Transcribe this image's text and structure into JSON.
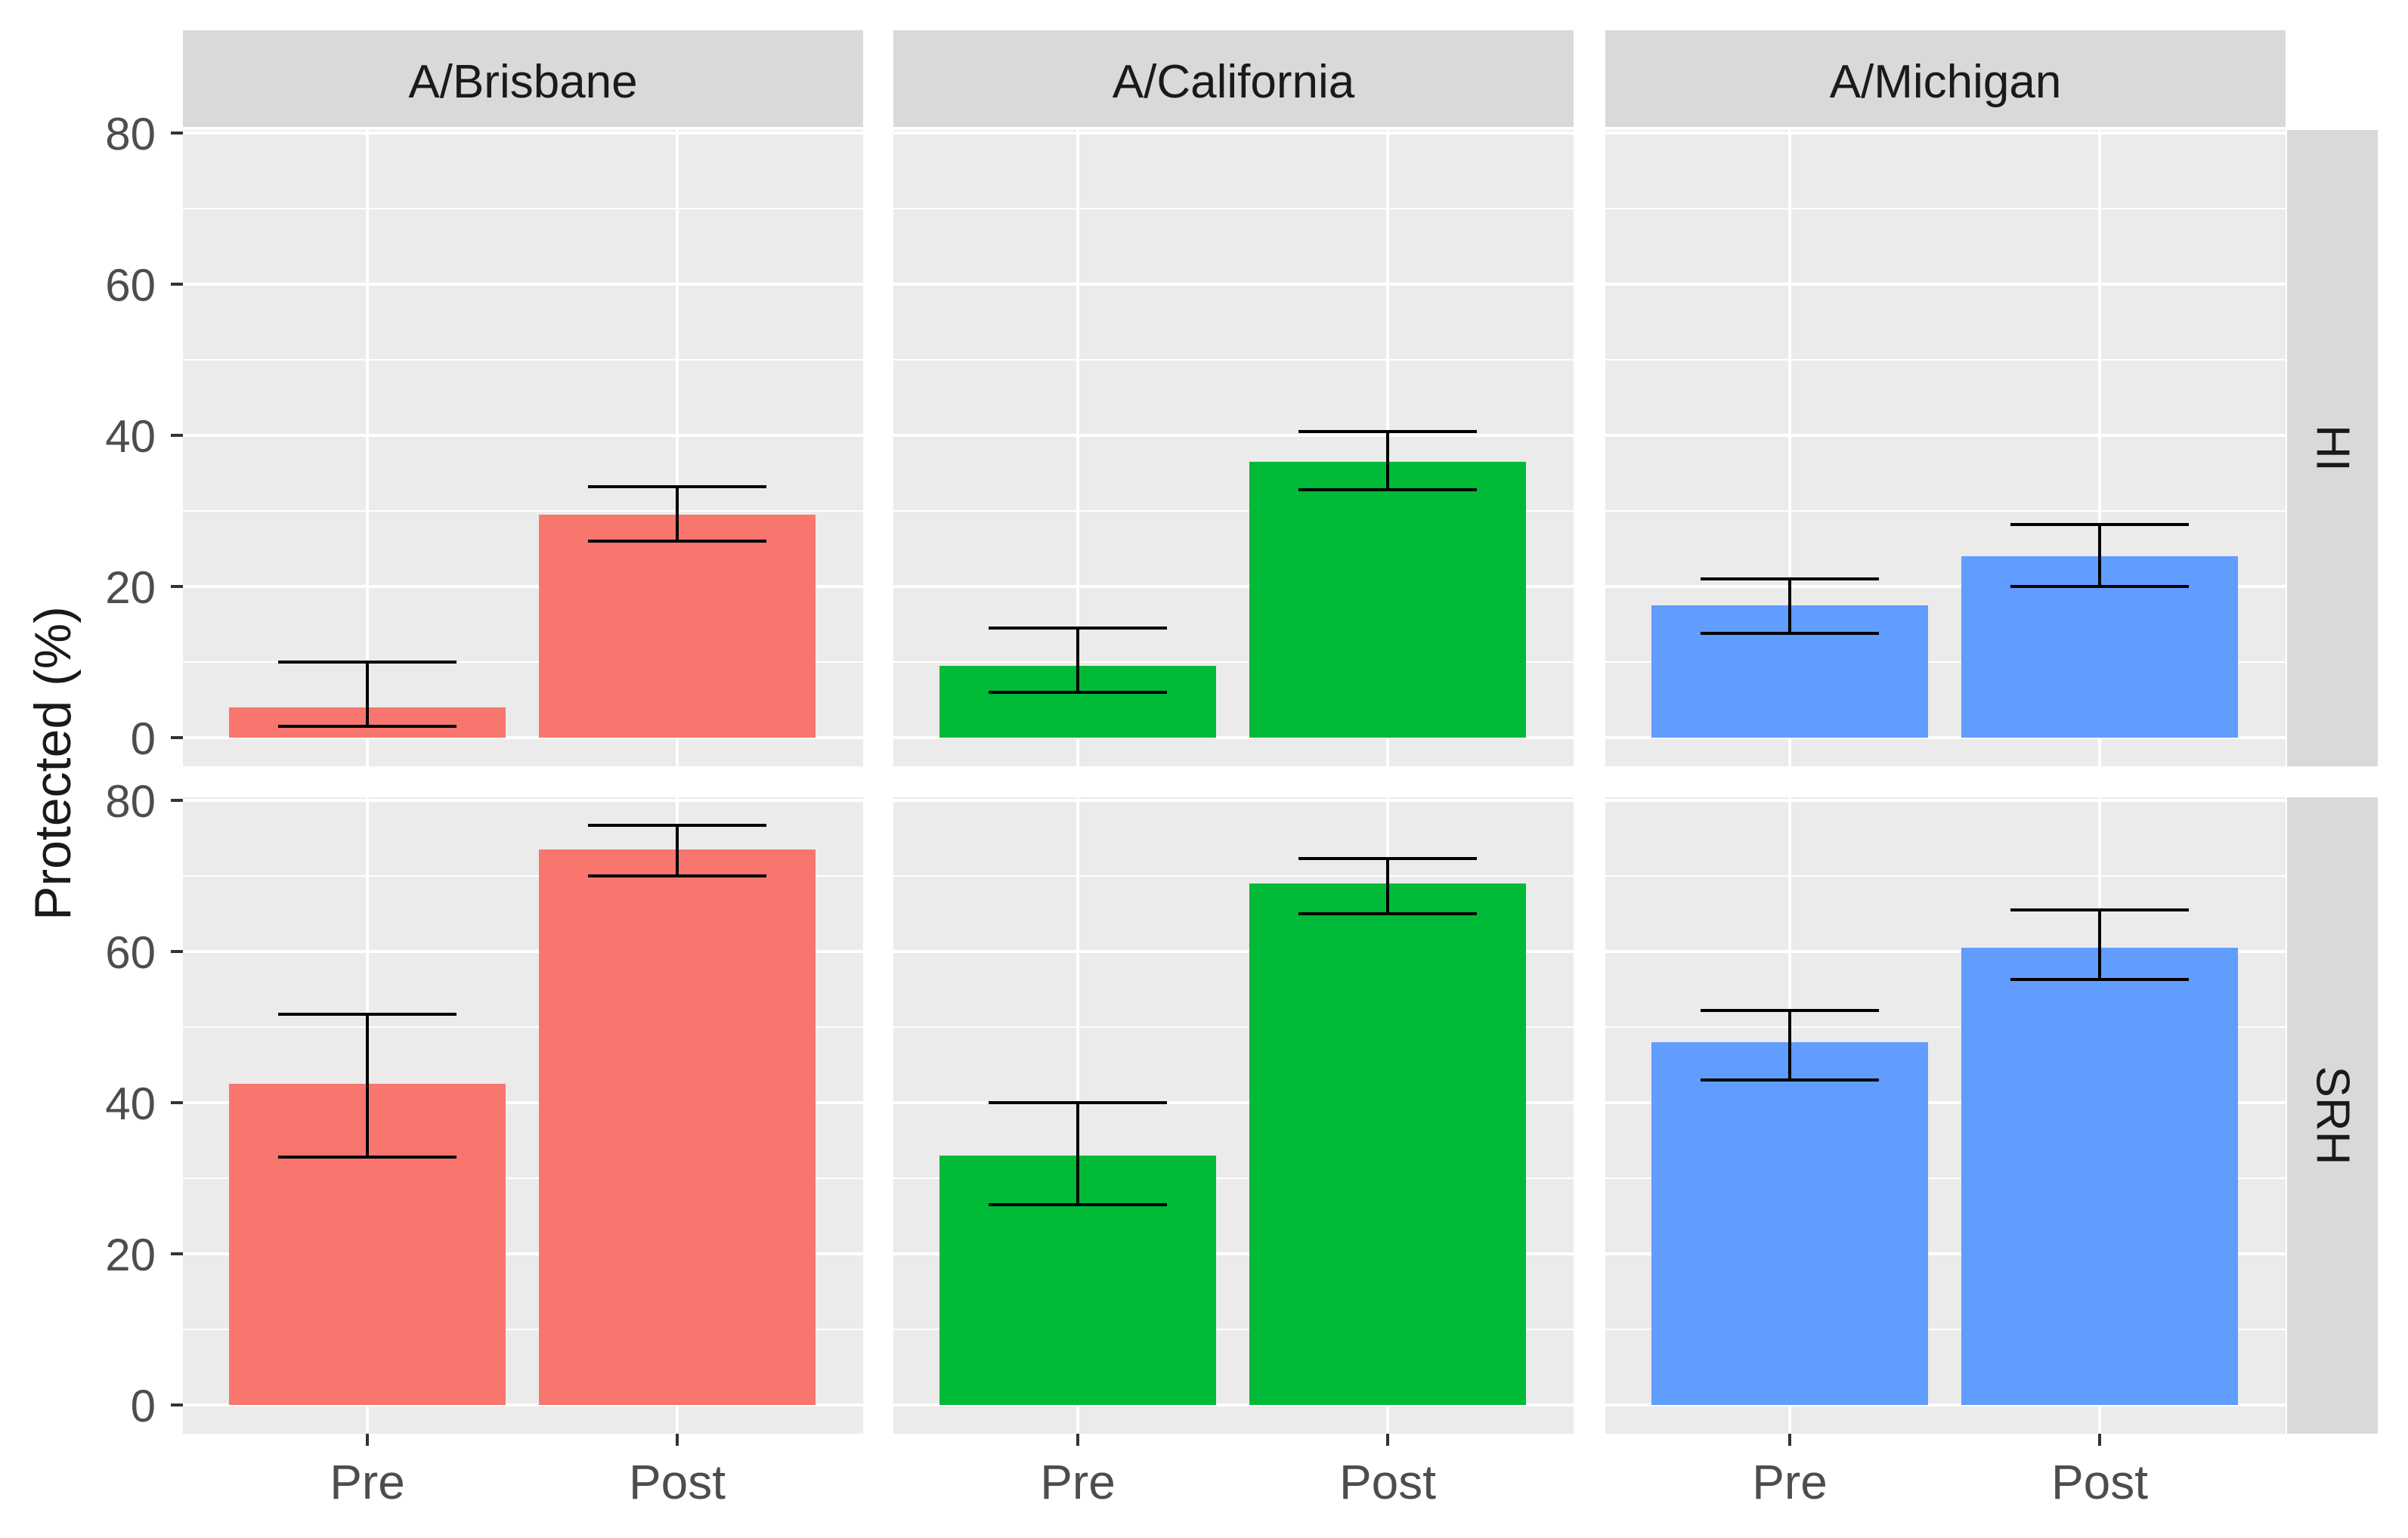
{
  "chart_data": {
    "type": "bar",
    "facet_columns": [
      "A/Brisbane",
      "A/California",
      "A/Michigan"
    ],
    "facet_rows": [
      "HI",
      "SRH"
    ],
    "categories": [
      "Pre",
      "Post"
    ],
    "ylabel": "Protected (%)",
    "xlabel": "",
    "ylim": [
      0,
      80
    ],
    "yticks": [
      0,
      20,
      40,
      60,
      80
    ],
    "colors": {
      "A/Brisbane": "#F8766D",
      "A/California": "#00BA38",
      "A/Michigan": "#619CFF"
    },
    "theme": {
      "panel_bg": "#EBEBEB",
      "strip_bg": "#D9D9D9",
      "grid": "#FFFFFF",
      "text": "#1A1A1A",
      "tick_text": "#4D4D4D",
      "tick": "#333333",
      "errorbar": "#000000"
    },
    "panels": [
      {
        "row": "HI",
        "col": "A/Brisbane",
        "bars": [
          {
            "category": "Pre",
            "value": 4,
            "err_low": 1.5,
            "err_high": 10
          },
          {
            "category": "Post",
            "value": 29.5,
            "err_low": 26,
            "err_high": 33.2
          }
        ]
      },
      {
        "row": "HI",
        "col": "A/California",
        "bars": [
          {
            "category": "Pre",
            "value": 9.5,
            "err_low": 6,
            "err_high": 14.5
          },
          {
            "category": "Post",
            "value": 36.5,
            "err_low": 32.8,
            "err_high": 40.5
          }
        ]
      },
      {
        "row": "HI",
        "col": "A/Michigan",
        "bars": [
          {
            "category": "Pre",
            "value": 17.5,
            "err_low": 13.8,
            "err_high": 21
          },
          {
            "category": "Post",
            "value": 24,
            "err_low": 20,
            "err_high": 28.2
          }
        ]
      },
      {
        "row": "SRH",
        "col": "A/Brisbane",
        "bars": [
          {
            "category": "Pre",
            "value": 42.5,
            "err_low": 32.8,
            "err_high": 51.7
          },
          {
            "category": "Post",
            "value": 73.5,
            "err_low": 70,
            "err_high": 76.7
          }
        ]
      },
      {
        "row": "SRH",
        "col": "A/California",
        "bars": [
          {
            "category": "Pre",
            "value": 33,
            "err_low": 26.5,
            "err_high": 40
          },
          {
            "category": "Post",
            "value": 69,
            "err_low": 65,
            "err_high": 72.3
          }
        ]
      },
      {
        "row": "SRH",
        "col": "A/Michigan",
        "bars": [
          {
            "category": "Pre",
            "value": 48,
            "err_low": 43,
            "err_high": 52.2
          },
          {
            "category": "Post",
            "value": 60.5,
            "err_low": 56.3,
            "err_high": 65.5
          }
        ]
      }
    ]
  }
}
